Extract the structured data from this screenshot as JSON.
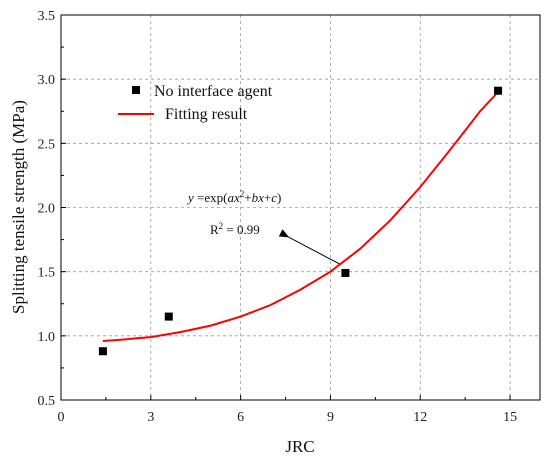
{
  "chart_data": {
    "type": "scatter",
    "xlabel": "JRC",
    "ylabel": "Splitting tensile strength (MPa)",
    "xlim": [
      0,
      16
    ],
    "ylim": [
      0.5,
      3.5
    ],
    "xticks": [
      0,
      3,
      6,
      9,
      12,
      15
    ],
    "yticks": [
      0.5,
      1.0,
      1.5,
      2.0,
      2.5,
      3.0,
      3.5
    ],
    "xtick_labels": [
      "0",
      "3",
      "6",
      "9",
      "12",
      "15"
    ],
    "ytick_labels": [
      "0.5",
      "1.0",
      "1.5",
      "2.0",
      "2.5",
      "3.0",
      "3.5"
    ],
    "grid": true,
    "legend_position": "upper-left",
    "series": [
      {
        "name": "No interface agent",
        "kind": "scatter",
        "marker": "square",
        "color": "#000000",
        "x": [
          1.4,
          3.6,
          9.5,
          14.6
        ],
        "y": [
          0.88,
          1.15,
          1.49,
          2.91
        ]
      },
      {
        "name": "Fitting result",
        "kind": "line",
        "color": "#ff0000",
        "x": [
          1.4,
          2.0,
          3.0,
          4.0,
          5.0,
          6.0,
          7.0,
          8.0,
          9.0,
          10.0,
          11.0,
          12.0,
          13.0,
          14.0,
          14.6
        ],
        "y": [
          0.96,
          0.97,
          0.99,
          1.03,
          1.08,
          1.15,
          1.24,
          1.36,
          1.5,
          1.68,
          1.9,
          2.16,
          2.45,
          2.75,
          2.9
        ]
      }
    ],
    "annotation": {
      "equation_y": "y",
      "equation_eq": " =exp(",
      "equation_a": "ax",
      "equation_exp2": "2",
      "equation_plus1": "+",
      "equation_b": "bx",
      "equation_plus2": "+",
      "equation_c": "c",
      "equation_close": ")",
      "r2_label": "R",
      "r2_exp": "2",
      "r2_value": " = 0.99",
      "arrow_target": {
        "x": 9.3,
        "y": 1.56
      },
      "arrow_source": {
        "x": 7.6,
        "y": 1.77
      }
    }
  }
}
